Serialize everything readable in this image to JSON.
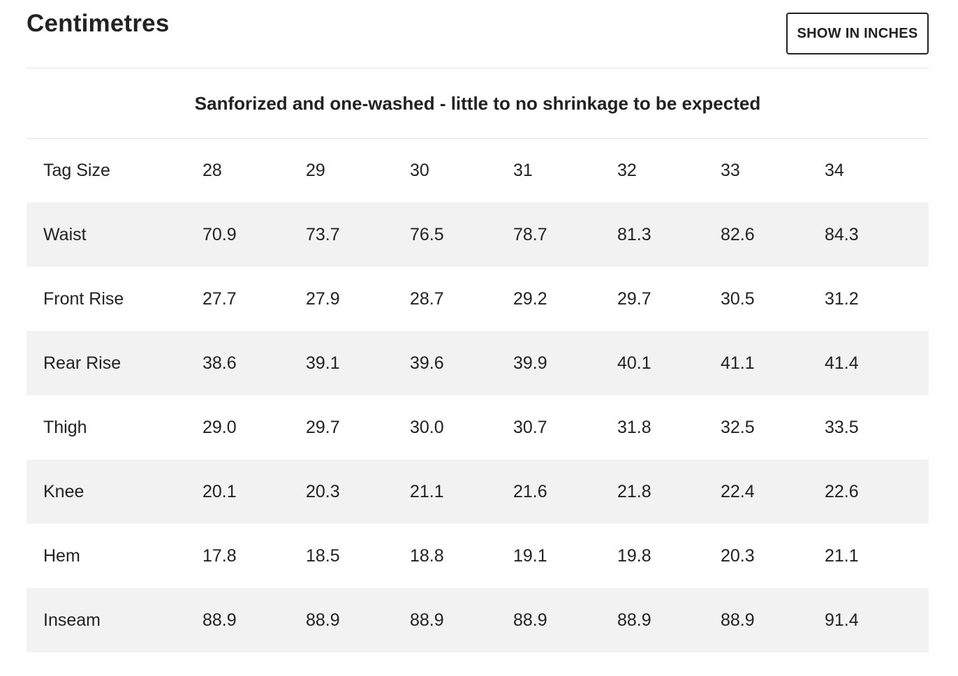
{
  "header": {
    "title": "Centimetres",
    "toggle_label": "SHOW IN INCHES"
  },
  "note": "Sanforized and one-washed - little to no shrinkage to be expected",
  "table": {
    "header": {
      "label": "Tag Size",
      "sizes": [
        "28",
        "29",
        "30",
        "31",
        "32",
        "33",
        "34"
      ]
    },
    "rows": [
      {
        "label": "Waist",
        "values": [
          "70.9",
          "73.7",
          "76.5",
          "78.7",
          "81.3",
          "82.6",
          "84.3"
        ]
      },
      {
        "label": "Front Rise",
        "values": [
          "27.7",
          "27.9",
          "28.7",
          "29.2",
          "29.7",
          "30.5",
          "31.2"
        ]
      },
      {
        "label": "Rear Rise",
        "values": [
          "38.6",
          "39.1",
          "39.6",
          "39.9",
          "40.1",
          "41.1",
          "41.4"
        ]
      },
      {
        "label": "Thigh",
        "values": [
          "29.0",
          "29.7",
          "30.0",
          "30.7",
          "31.8",
          "32.5",
          "33.5"
        ]
      },
      {
        "label": "Knee",
        "values": [
          "20.1",
          "20.3",
          "21.1",
          "21.6",
          "21.8",
          "22.4",
          "22.6"
        ]
      },
      {
        "label": "Hem",
        "values": [
          "17.8",
          "18.5",
          "18.8",
          "19.1",
          "19.8",
          "20.3",
          "21.1"
        ]
      },
      {
        "label": "Inseam",
        "values": [
          "88.9",
          "88.9",
          "88.9",
          "88.9",
          "88.9",
          "88.9",
          "91.4"
        ]
      }
    ]
  },
  "colors": {
    "text": "#222222",
    "stripe": "#f2f2f2",
    "divider": "#e3e3e3",
    "button_border": "#222222"
  }
}
